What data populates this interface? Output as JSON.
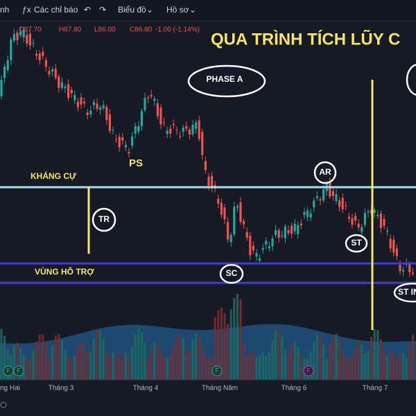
{
  "toolbar": {
    "left": "nh",
    "indicators": "Các chỉ báo",
    "chart": "Biểu đồ",
    "profile": "Hồ sơ"
  },
  "ohlc": {
    "open": "O87.70",
    "high": "H87.80",
    "low": "L86.00",
    "close": "C86.80",
    "change": "-1.00 (-1.14%)"
  },
  "title": "QUA TRÌNH TÍCH LŨY C",
  "annotations": {
    "phase": "PHASE A",
    "ps": "PS",
    "resistance": "KHÁNG CỰ",
    "ar": "AR",
    "tr": "TR",
    "st": "ST",
    "sc": "SC",
    "support": "VÙNG HỖ TRỢ",
    "st_in": "ST IN"
  },
  "markers": [
    "F",
    "F",
    "F",
    "F"
  ],
  "x_labels": [
    "ng Hai",
    "Tháng 3",
    "Tháng 4",
    "Tháng Năm",
    "Tháng 6",
    "Tháng 7"
  ]
}
